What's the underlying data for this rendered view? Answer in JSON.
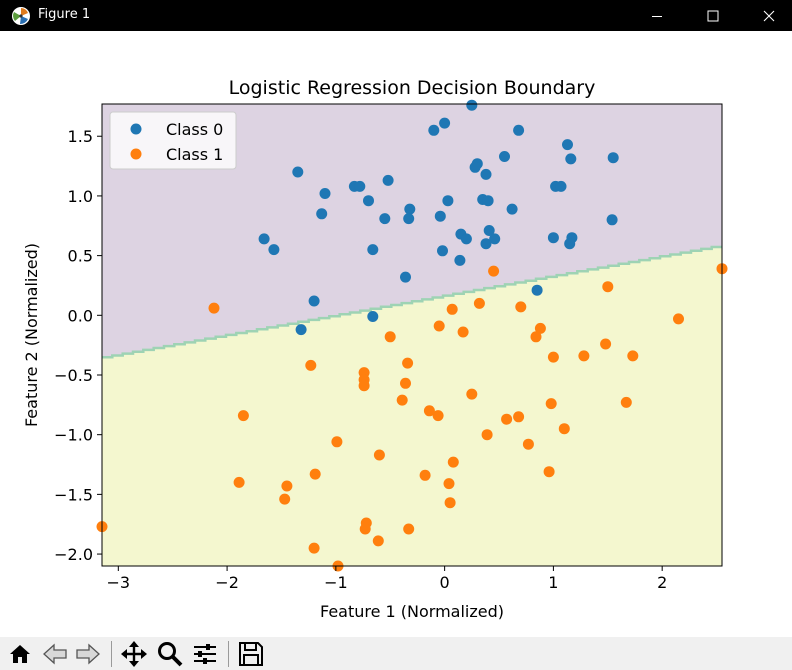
{
  "window": {
    "title": "Figure 1"
  },
  "toolbar": {
    "buttons": [
      "home",
      "back",
      "forward",
      "pan",
      "zoom",
      "configure-subplots",
      "save"
    ]
  },
  "chart_data": {
    "type": "scatter",
    "title": "Logistic Regression Decision Boundary",
    "xlabel": "Feature 1 (Normalized)",
    "ylabel": "Feature 2 (Normalized)",
    "xlim": [
      -3.15,
      2.55
    ],
    "ylim": [
      -2.1,
      1.77
    ],
    "xticks": [
      -3,
      -2,
      -1,
      0,
      1,
      2
    ],
    "yticks": [
      -2.0,
      -1.5,
      -1.0,
      -0.5,
      0.0,
      0.5,
      1.0,
      1.5
    ],
    "xtick_labels": [
      "−3",
      "−2",
      "−1",
      "0",
      "1",
      "2"
    ],
    "ytick_labels": [
      "−2.0",
      "−1.5",
      "−1.0",
      "−0.5",
      "0.0",
      "0.5",
      "1.0",
      "1.5"
    ],
    "grid": false,
    "legend": "upper-left",
    "decision_boundary": {
      "x": [
        -3.15,
        2.55
      ],
      "y": [
        -0.36,
        0.58
      ]
    },
    "region_colors": {
      "class_0": "#ddd3e2",
      "class_1": "#f4f7cf"
    },
    "boundary_color": "#9ed3b4",
    "series": [
      {
        "name": "Class 0",
        "color": "#1f77b4",
        "points": [
          [
            0.25,
            1.76
          ],
          [
            0.0,
            1.61
          ],
          [
            -0.1,
            1.55
          ],
          [
            0.68,
            1.55
          ],
          [
            1.13,
            1.43
          ],
          [
            -1.35,
            1.2
          ],
          [
            0.3,
            1.27
          ],
          [
            0.28,
            1.24
          ],
          [
            0.55,
            1.33
          ],
          [
            1.16,
            1.31
          ],
          [
            1.55,
            1.32
          ],
          [
            -0.83,
            1.08
          ],
          [
            -0.78,
            1.08
          ],
          [
            -0.52,
            1.13
          ],
          [
            0.38,
            1.18
          ],
          [
            -1.1,
            1.02
          ],
          [
            -0.7,
            0.96
          ],
          [
            0.03,
            0.96
          ],
          [
            0.35,
            0.97
          ],
          [
            0.4,
            0.96
          ],
          [
            1.02,
            1.08
          ],
          [
            1.07,
            1.08
          ],
          [
            -0.32,
            0.89
          ],
          [
            0.62,
            0.89
          ],
          [
            -1.13,
            0.85
          ],
          [
            -0.55,
            0.81
          ],
          [
            -0.33,
            0.81
          ],
          [
            -0.04,
            0.83
          ],
          [
            1.54,
            0.8
          ],
          [
            0.15,
            0.68
          ],
          [
            0.2,
            0.64
          ],
          [
            0.41,
            0.71
          ],
          [
            0.46,
            0.64
          ],
          [
            0.38,
            0.6
          ],
          [
            -1.66,
            0.64
          ],
          [
            -1.57,
            0.55
          ],
          [
            -0.66,
            0.55
          ],
          [
            -0.02,
            0.54
          ],
          [
            1.0,
            0.65
          ],
          [
            1.17,
            0.65
          ],
          [
            1.15,
            0.6
          ],
          [
            0.14,
            0.46
          ],
          [
            -0.36,
            0.32
          ],
          [
            0.85,
            0.21
          ],
          [
            -1.2,
            0.12
          ],
          [
            -0.66,
            -0.01
          ],
          [
            -1.32,
            -0.12
          ]
        ]
      },
      {
        "name": "Class 1",
        "color": "#ff7f0e",
        "points": [
          [
            0.45,
            0.37
          ],
          [
            2.55,
            0.39
          ],
          [
            1.5,
            0.24
          ],
          [
            -2.12,
            0.06
          ],
          [
            0.07,
            0.05
          ],
          [
            0.32,
            0.1
          ],
          [
            0.7,
            0.07
          ],
          [
            2.15,
            -0.03
          ],
          [
            -0.05,
            -0.09
          ],
          [
            0.17,
            -0.14
          ],
          [
            0.88,
            -0.11
          ],
          [
            0.84,
            -0.18
          ],
          [
            -0.5,
            -0.18
          ],
          [
            1.0,
            -0.35
          ],
          [
            1.28,
            -0.34
          ],
          [
            1.48,
            -0.24
          ],
          [
            1.73,
            -0.34
          ],
          [
            -1.23,
            -0.42
          ],
          [
            -0.34,
            -0.4
          ],
          [
            -0.74,
            -0.48
          ],
          [
            -0.74,
            -0.54
          ],
          [
            -0.74,
            -0.59
          ],
          [
            -0.36,
            -0.57
          ],
          [
            0.25,
            -0.66
          ],
          [
            -0.39,
            -0.71
          ],
          [
            0.98,
            -0.74
          ],
          [
            1.67,
            -0.73
          ],
          [
            -1.85,
            -0.84
          ],
          [
            -0.14,
            -0.8
          ],
          [
            -0.06,
            -0.84
          ],
          [
            0.57,
            -0.87
          ],
          [
            0.68,
            -0.85
          ],
          [
            1.1,
            -0.95
          ],
          [
            0.39,
            -1.0
          ],
          [
            -0.99,
            -1.06
          ],
          [
            0.77,
            -1.08
          ],
          [
            -0.6,
            -1.17
          ],
          [
            0.08,
            -1.23
          ],
          [
            0.96,
            -1.31
          ],
          [
            -1.19,
            -1.33
          ],
          [
            -0.18,
            -1.34
          ],
          [
            -1.89,
            -1.4
          ],
          [
            0.04,
            -1.41
          ],
          [
            -1.45,
            -1.43
          ],
          [
            -1.47,
            -1.54
          ],
          [
            0.05,
            -1.57
          ],
          [
            -3.15,
            -1.77
          ],
          [
            -0.72,
            -1.74
          ],
          [
            -0.73,
            -1.79
          ],
          [
            -0.33,
            -1.79
          ],
          [
            -0.61,
            -1.89
          ],
          [
            -1.2,
            -1.95
          ],
          [
            -0.98,
            -2.1
          ]
        ]
      }
    ]
  }
}
